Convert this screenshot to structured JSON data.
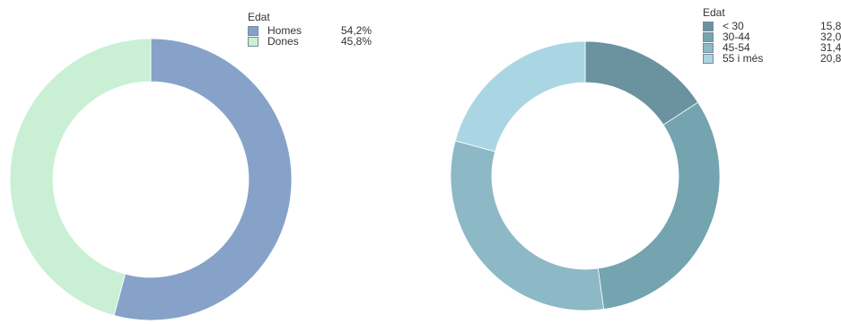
{
  "chart_data": [
    {
      "type": "pie",
      "legend_title": "Edat",
      "legend_position": "top-right",
      "donut": true,
      "slices": [
        {
          "label": "Homes",
          "value": 54.2,
          "display": "54,2%",
          "color": "#86a2c8"
        },
        {
          "label": "Dones",
          "value": 45.8,
          "display": "45,8%",
          "color": "#c9f0d4"
        }
      ]
    },
    {
      "type": "pie",
      "legend_title": "Edat",
      "legend_position": "top-right",
      "donut": true,
      "slices": [
        {
          "label": "< 30",
          "value": 15.8,
          "display": "15,8%",
          "color": "#6b929f"
        },
        {
          "label": "30-44",
          "value": 32.0,
          "display": "32,0%",
          "color": "#73a4b0"
        },
        {
          "label": "45-54",
          "value": 31.4,
          "display": "31,4%",
          "color": "#8db8c6"
        },
        {
          "label": "55 i més",
          "value": 20.8,
          "display": "20,8%",
          "color": "#aad6e3"
        }
      ]
    }
  ]
}
